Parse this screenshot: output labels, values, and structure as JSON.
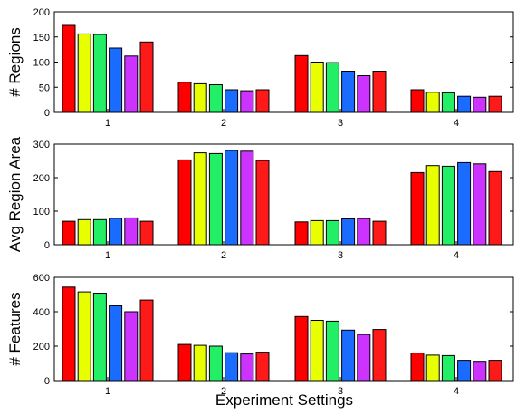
{
  "figure": {
    "xlabel": "Experiment Settings"
  },
  "chart_data": [
    {
      "type": "bar",
      "ylabel": "# Regions",
      "categories": [
        "1",
        "2",
        "3",
        "4"
      ],
      "ylim": [
        0,
        200
      ],
      "yticks": [
        "0",
        "50",
        "100",
        "150",
        "200"
      ],
      "grid": false,
      "colors": [
        "#ff0000",
        "#e8ff00",
        "#22ee66",
        "#1a6bff",
        "#cc33ff",
        "#ff1a1a"
      ],
      "groups": [
        [
          173,
          156,
          155,
          128,
          112,
          140
        ],
        [
          60,
          57,
          55,
          45,
          43,
          45
        ],
        [
          113,
          100,
          99,
          82,
          73,
          82
        ],
        [
          45,
          40,
          39,
          32,
          30,
          32
        ]
      ]
    },
    {
      "type": "bar",
      "ylabel": "Avg Region Area",
      "categories": [
        "1",
        "2",
        "3",
        "4"
      ],
      "ylim": [
        0,
        300
      ],
      "yticks": [
        "0",
        "100",
        "200",
        "300"
      ],
      "grid": false,
      "colors": [
        "#ff0000",
        "#e8ff00",
        "#22ee66",
        "#1a6bff",
        "#cc33ff",
        "#ff1a1a"
      ],
      "groups": [
        [
          70,
          75,
          75,
          79,
          80,
          70
        ],
        [
          253,
          274,
          272,
          281,
          279,
          251
        ],
        [
          68,
          72,
          72,
          77,
          78,
          70
        ],
        [
          215,
          236,
          234,
          245,
          241,
          218
        ]
      ]
    },
    {
      "type": "bar",
      "ylabel": "# Features",
      "categories": [
        "1",
        "2",
        "3",
        "4"
      ],
      "ylim": [
        0,
        600
      ],
      "yticks": [
        "0",
        "200",
        "400",
        "600"
      ],
      "grid": false,
      "colors": [
        "#ff0000",
        "#e8ff00",
        "#22ee66",
        "#1a6bff",
        "#cc33ff",
        "#ff1a1a"
      ],
      "groups": [
        [
          543,
          515,
          508,
          435,
          400,
          468
        ],
        [
          210,
          205,
          200,
          162,
          155,
          165
        ],
        [
          372,
          350,
          345,
          293,
          268,
          297
        ],
        [
          160,
          148,
          145,
          118,
          112,
          118
        ]
      ]
    }
  ]
}
